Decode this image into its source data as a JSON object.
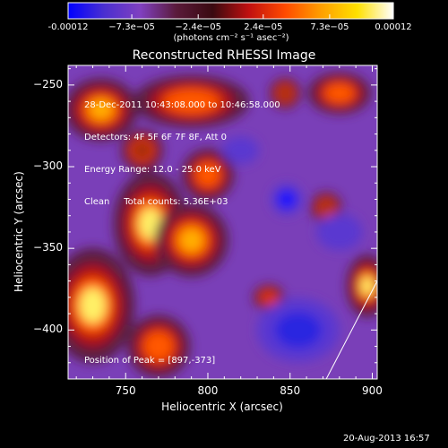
{
  "colorbar": {
    "ticks": [
      {
        "label": "-0.00012",
        "value": -0.00012
      },
      {
        "label": "−7.3e−05",
        "value": -7.3e-05
      },
      {
        "label": "−2.4e−05",
        "value": -2.4e-05
      },
      {
        "label": "2.4e−05",
        "value": 2.4e-05
      },
      {
        "label": "7.3e−05",
        "value": 7.3e-05
      },
      {
        "label": "0.00012",
        "value": 0.00012
      }
    ],
    "range": [
      -0.00012,
      0.00012
    ],
    "units": "(photons cm⁻² s⁻¹ asec⁻²)",
    "colors": [
      "#0000ff",
      "#4a2fd0",
      "#8040c0",
      "#5a1a3a",
      "#3a0a10",
      "#c01010",
      "#ff4a00",
      "#ff9f00",
      "#ffe000",
      "#ffffff"
    ]
  },
  "chart_data": {
    "type": "heatmap",
    "title": "Reconstructed RHESSI Image",
    "xlabel": "Heliocentric X (arcsec)",
    "ylabel": "Heliocentric Y (arcsec)",
    "xlim": [
      715,
      903
    ],
    "ylim": [
      -430,
      -238
    ],
    "x_ticks": [
      750,
      800,
      850,
      900
    ],
    "y_ticks": [
      -250,
      -300,
      -350,
      -400
    ],
    "annotations": [
      "28-Dec-2011 10:43:08.000 to 10:46:58.000",
      "Detectors: 4F 5F 6F 7F 8F, Att 0",
      "Energy Range: 12.0 - 25.0 keV",
      "Clean     Total counts: 5.36E+03"
    ],
    "peak_label": "Position of Peak = [897,-373]",
    "peak": [
      897,
      -373
    ],
    "limb_line": [
      [
        872,
        -430
      ],
      [
        903,
        -370
      ]
    ],
    "blobs": [
      {
        "x": 730,
        "y": -385,
        "sx": 16,
        "sy": 22,
        "v": 1.0
      },
      {
        "x": 765,
        "y": -335,
        "sx": 14,
        "sy": 20,
        "v": 0.95
      },
      {
        "x": 790,
        "y": -345,
        "sx": 14,
        "sy": 14,
        "v": 0.85
      },
      {
        "x": 800,
        "y": -305,
        "sx": 10,
        "sy": 10,
        "v": 0.7
      },
      {
        "x": 735,
        "y": -265,
        "sx": 14,
        "sy": 12,
        "v": 0.75
      },
      {
        "x": 790,
        "y": -260,
        "sx": 22,
        "sy": 10,
        "v": 0.7
      },
      {
        "x": 770,
        "y": -410,
        "sx": 12,
        "sy": 12,
        "v": 0.6
      },
      {
        "x": 897,
        "y": -373,
        "sx": 8,
        "sy": 12,
        "v": 1.0
      },
      {
        "x": 880,
        "y": -255,
        "sx": 12,
        "sy": 8,
        "v": 0.6
      },
      {
        "x": 847,
        "y": -255,
        "sx": 6,
        "sy": 6,
        "v": 0.35
      },
      {
        "x": 872,
        "y": -325,
        "sx": 6,
        "sy": 6,
        "v": 0.35
      },
      {
        "x": 837,
        "y": -380,
        "sx": 6,
        "sy": 5,
        "v": 0.45
      },
      {
        "x": 760,
        "y": -290,
        "sx": 8,
        "sy": 8,
        "v": 0.35
      },
      {
        "x": 855,
        "y": -400,
        "sx": 18,
        "sy": 14,
        "v": -0.55
      },
      {
        "x": 848,
        "y": -320,
        "sx": 7,
        "sy": 7,
        "v": -0.7
      },
      {
        "x": 820,
        "y": -290,
        "sx": 8,
        "sy": 6,
        "v": -0.35
      },
      {
        "x": 880,
        "y": -340,
        "sx": 10,
        "sy": 8,
        "v": -0.3
      }
    ]
  },
  "footer": {
    "date": "20-Aug-2013 16:57"
  }
}
